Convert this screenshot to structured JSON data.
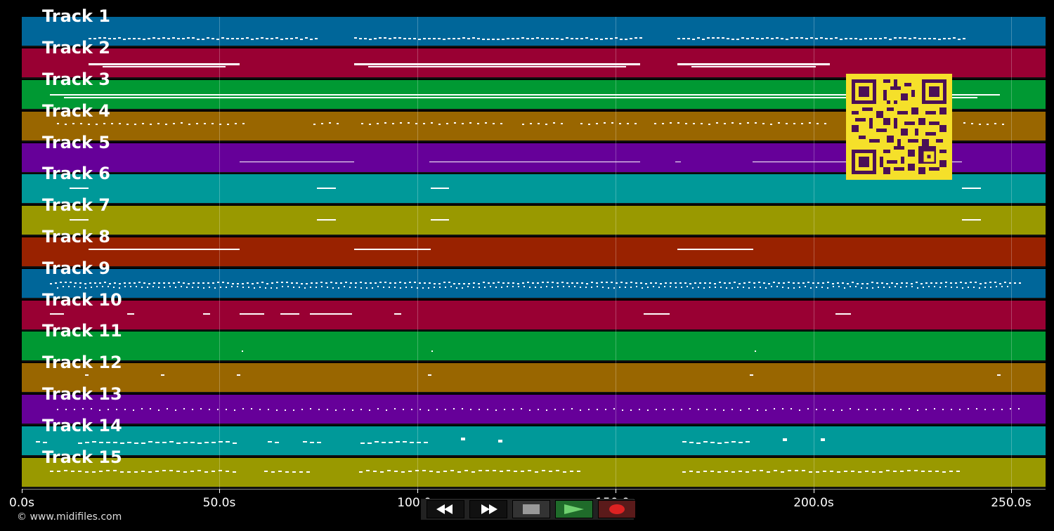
{
  "tracks": [
    {
      "label": "Track 1",
      "color": "#006699"
    },
    {
      "label": "Track 2",
      "color": "#990033"
    },
    {
      "label": "Track 3",
      "color": "#009933"
    },
    {
      "label": "Track 4",
      "color": "#996600"
    },
    {
      "label": "Track 5",
      "color": "#660099"
    },
    {
      "label": "Track 6",
      "color": "#009999"
    },
    {
      "label": "Track 7",
      "color": "#999900"
    },
    {
      "label": "Track 8",
      "color": "#992200"
    },
    {
      "label": "Track 9",
      "color": "#006699"
    },
    {
      "label": "Track 10",
      "color": "#990033"
    },
    {
      "label": "Track 11",
      "color": "#009933"
    },
    {
      "label": "Track 12",
      "color": "#996600"
    },
    {
      "label": "Track 13",
      "color": "#660099"
    },
    {
      "label": "Track 14",
      "color": "#009999"
    },
    {
      "label": "Track 15",
      "color": "#999900"
    }
  ],
  "axis": {
    "ticks": [
      "0.0s",
      "50.0s",
      "100.0s",
      "150.0s",
      "200.0s",
      "250.0s"
    ]
  },
  "copyright": "© www.midifiles.com",
  "transport": {
    "rewind_icon": "rewind-icon",
    "fast_forward_icon": "fast-forward-icon",
    "stop_icon": "stop-icon",
    "play_icon": "play-icon",
    "record_icon": "record-icon"
  },
  "qr_icon": "qr-code-icon"
}
